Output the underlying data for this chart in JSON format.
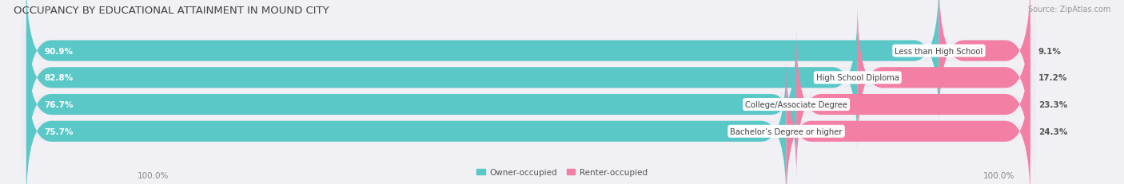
{
  "title": "OCCUPANCY BY EDUCATIONAL ATTAINMENT IN MOUND CITY",
  "source": "Source: ZipAtlas.com",
  "categories": [
    "Less than High School",
    "High School Diploma",
    "College/Associate Degree",
    "Bachelor’s Degree or higher"
  ],
  "owner_values": [
    90.9,
    82.8,
    76.7,
    75.7
  ],
  "renter_values": [
    9.1,
    17.2,
    23.3,
    24.3
  ],
  "owner_color": "#5bc8c8",
  "renter_color": "#f47fa4",
  "bar_bg_color": "#e2e2ea",
  "row_bg_color": "#ececf2",
  "background_color": "#f0f0f5",
  "title_color": "#444444",
  "source_color": "#999999",
  "label_color": "#ffffff",
  "pct_right_color": "#555555",
  "cat_label_color": "#444444",
  "x_axis_color": "#888888",
  "title_fontsize": 9.5,
  "bar_label_fontsize": 7.5,
  "cat_label_fontsize": 7.2,
  "source_fontsize": 7.0,
  "x_label_fontsize": 7.5,
  "legend_fontsize": 7.5,
  "x_left_label": "100.0%",
  "x_right_label": "100.0%"
}
